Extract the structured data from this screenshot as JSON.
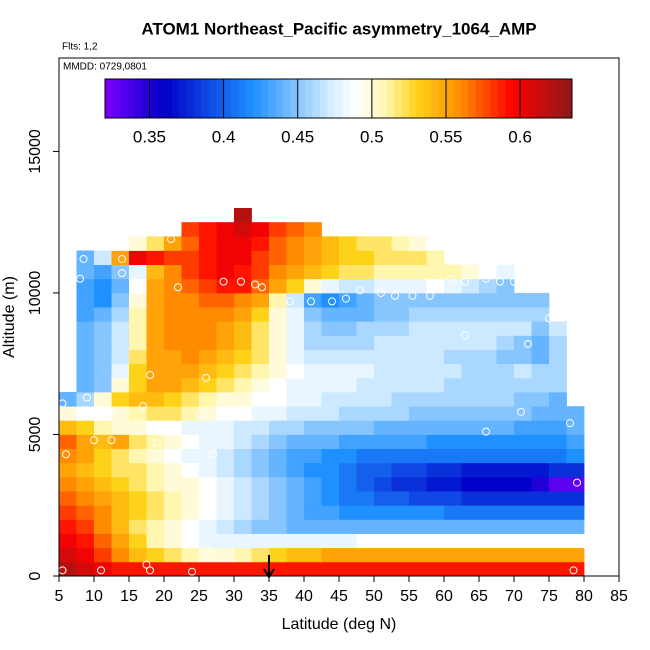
{
  "chart_data": {
    "type": "heatmap",
    "title": "ATOM1 Northeast_Pacific asymmetry_1064_AMP",
    "subtitle": "Flts: 1,2",
    "annotation": "MMDD: 0729,0801",
    "xlabel": "Latitude (deg N)",
    "ylabel": "Altitude (m)",
    "xlim": [
      5,
      85
    ],
    "xticks": [
      5,
      10,
      15,
      20,
      25,
      30,
      35,
      40,
      45,
      50,
      55,
      60,
      65,
      70,
      75,
      80,
      85
    ],
    "ylim": [
      0,
      18300
    ],
    "yticks": [
      0,
      5000,
      10000,
      15000
    ],
    "xbins": [
      5,
      7.5,
      10,
      12.5,
      15,
      17.5,
      20,
      22.5,
      25,
      27.5,
      30,
      32.5,
      35,
      37.5,
      40,
      42.5,
      45,
      47.5,
      50,
      52.5,
      55,
      57.5,
      60,
      62.5,
      65,
      67.5,
      70,
      72.5,
      75,
      77.5,
      80
    ],
    "ybins": [
      0,
      500,
      1000,
      1500,
      2000,
      2500,
      3000,
      3500,
      4000,
      4500,
      5000,
      5500,
      6000,
      6500,
      7000,
      7500,
      8000,
      8500,
      9000,
      9500,
      10000,
      10500,
      11000,
      11500,
      12000,
      12500,
      13000
    ],
    "z": [
      [
        0.62,
        0.61,
        0.6,
        0.59,
        0.59,
        0.59,
        0.59,
        0.59,
        0.59,
        0.59,
        0.59,
        0.59,
        0.59,
        0.59,
        0.59,
        0.59,
        0.59,
        0.59,
        0.59,
        0.59,
        0.59,
        0.59,
        0.59,
        0.59,
        0.59,
        0.59,
        0.59,
        0.59,
        0.59,
        0.59
      ],
      [
        0.61,
        0.6,
        0.58,
        0.56,
        0.54,
        0.53,
        0.52,
        0.51,
        0.5,
        0.5,
        0.51,
        0.52,
        0.53,
        0.54,
        0.54,
        0.55,
        0.55,
        0.55,
        0.55,
        0.55,
        0.55,
        0.55,
        0.55,
        0.55,
        0.55,
        0.55,
        0.55,
        0.55,
        0.55,
        0.55
      ],
      [
        0.6,
        0.59,
        0.57,
        0.55,
        0.53,
        0.51,
        0.5,
        0.49,
        0.48,
        0.48,
        0.48,
        0.48,
        0.48,
        0.48,
        0.48,
        0.48,
        0.48,
        0.49,
        0.49,
        0.49,
        0.49,
        0.49,
        0.49,
        0.49,
        0.49,
        0.49,
        0.49,
        0.49,
        0.49,
        0.49
      ],
      [
        0.59,
        0.58,
        0.56,
        0.54,
        0.52,
        0.51,
        0.5,
        0.49,
        0.48,
        0.47,
        0.46,
        0.45,
        0.45,
        0.44,
        0.44,
        0.44,
        0.44,
        0.44,
        0.44,
        0.44,
        0.44,
        0.44,
        0.44,
        0.44,
        0.44,
        0.44,
        0.44,
        0.44,
        0.44,
        0.44
      ],
      [
        0.58,
        0.57,
        0.56,
        0.54,
        0.53,
        0.52,
        0.51,
        0.5,
        0.49,
        0.48,
        0.47,
        0.46,
        0.45,
        0.44,
        0.43,
        0.43,
        0.42,
        0.42,
        0.42,
        0.42,
        0.42,
        0.42,
        0.41,
        0.41,
        0.41,
        0.41,
        0.41,
        0.41,
        0.41,
        0.41
      ],
      [
        0.57,
        0.56,
        0.55,
        0.54,
        0.53,
        0.52,
        0.51,
        0.5,
        0.49,
        0.48,
        0.47,
        0.46,
        0.45,
        0.44,
        0.43,
        0.42,
        0.41,
        0.41,
        0.4,
        0.4,
        0.39,
        0.39,
        0.39,
        0.38,
        0.38,
        0.38,
        0.38,
        0.38,
        0.38,
        0.38
      ],
      [
        0.56,
        0.55,
        0.54,
        0.53,
        0.52,
        0.51,
        0.5,
        0.5,
        0.49,
        0.48,
        0.47,
        0.46,
        0.45,
        0.44,
        0.43,
        0.42,
        0.41,
        0.4,
        0.39,
        0.38,
        0.38,
        0.37,
        0.37,
        0.36,
        0.36,
        0.36,
        0.36,
        0.35,
        0.33,
        0.33
      ],
      [
        0.55,
        0.54,
        0.53,
        0.52,
        0.52,
        0.51,
        0.5,
        0.49,
        0.48,
        0.47,
        0.46,
        0.45,
        0.44,
        0.43,
        0.42,
        0.42,
        0.41,
        0.4,
        0.4,
        0.39,
        0.39,
        0.38,
        0.38,
        0.37,
        0.37,
        0.37,
        0.37,
        0.37,
        0.38,
        0.38
      ],
      [
        0.56,
        0.55,
        0.53,
        0.52,
        0.51,
        0.5,
        0.49,
        0.48,
        0.48,
        0.47,
        0.46,
        0.45,
        0.44,
        0.43,
        0.43,
        0.42,
        0.42,
        0.41,
        0.41,
        0.41,
        0.41,
        0.41,
        0.41,
        0.41,
        0.41,
        0.41,
        0.41,
        0.41,
        0.41,
        0.42
      ],
      [
        0.57,
        0.55,
        0.54,
        0.55,
        0.52,
        0.51,
        0.5,
        0.49,
        0.48,
        0.48,
        0.47,
        0.46,
        0.45,
        0.44,
        0.44,
        0.44,
        0.43,
        0.43,
        0.43,
        0.43,
        0.43,
        0.42,
        0.42,
        0.42,
        0.42,
        0.42,
        0.42,
        0.42,
        0.42,
        0.43
      ],
      [
        0.54,
        0.53,
        0.51,
        0.5,
        0.5,
        0.49,
        0.49,
        0.48,
        0.48,
        0.48,
        0.47,
        0.47,
        0.46,
        0.46,
        0.45,
        0.45,
        0.45,
        0.45,
        0.44,
        0.44,
        0.44,
        0.44,
        0.44,
        0.44,
        0.44,
        0.44,
        0.43,
        0.43,
        0.43,
        0.44
      ],
      [
        0.5,
        0.49,
        0.49,
        0.5,
        0.51,
        0.52,
        0.52,
        0.51,
        0.5,
        0.49,
        0.49,
        0.48,
        0.48,
        0.47,
        0.47,
        0.47,
        0.46,
        0.46,
        0.46,
        0.46,
        0.45,
        0.45,
        0.45,
        0.45,
        0.45,
        0.45,
        0.45,
        0.44,
        0.44,
        0.44
      ],
      [
        0.44,
        0.46,
        0.5,
        0.53,
        0.54,
        0.54,
        0.53,
        0.52,
        0.51,
        0.5,
        0.5,
        0.49,
        0.49,
        0.48,
        0.48,
        0.47,
        0.47,
        0.47,
        0.47,
        0.46,
        0.46,
        0.46,
        0.46,
        0.46,
        0.46,
        0.46,
        0.45,
        0.45,
        0.44,
        null
      ],
      [
        null,
        0.44,
        0.45,
        0.5,
        0.53,
        0.55,
        0.55,
        0.54,
        0.53,
        0.52,
        0.51,
        0.5,
        0.49,
        0.48,
        0.48,
        0.48,
        0.48,
        0.47,
        0.47,
        0.47,
        0.47,
        0.47,
        0.46,
        0.46,
        0.46,
        0.46,
        0.46,
        0.46,
        0.46,
        null
      ],
      [
        null,
        0.44,
        0.45,
        0.48,
        0.53,
        0.55,
        0.55,
        0.55,
        0.54,
        0.53,
        0.52,
        0.51,
        0.5,
        0.49,
        0.48,
        0.48,
        0.48,
        0.48,
        0.47,
        0.47,
        0.47,
        0.47,
        0.47,
        0.46,
        0.46,
        0.46,
        0.47,
        0.46,
        0.46,
        null
      ],
      [
        null,
        0.44,
        0.45,
        0.47,
        0.52,
        0.55,
        0.55,
        0.56,
        0.55,
        0.54,
        0.53,
        0.52,
        0.5,
        0.48,
        0.47,
        0.47,
        0.47,
        0.47,
        0.47,
        0.47,
        0.47,
        0.47,
        0.46,
        0.46,
        0.46,
        0.45,
        0.45,
        0.44,
        0.46,
        null
      ],
      [
        null,
        0.44,
        0.45,
        0.47,
        0.51,
        0.55,
        0.56,
        0.56,
        0.56,
        0.55,
        0.54,
        0.52,
        0.5,
        0.48,
        0.46,
        0.46,
        0.46,
        0.46,
        0.47,
        0.47,
        0.47,
        0.47,
        0.47,
        0.47,
        0.47,
        0.46,
        0.45,
        0.44,
        0.46,
        null
      ],
      [
        null,
        0.44,
        0.45,
        0.47,
        0.51,
        0.55,
        0.56,
        0.56,
        0.56,
        0.55,
        0.54,
        0.52,
        0.5,
        0.48,
        0.46,
        0.45,
        0.45,
        0.46,
        0.46,
        0.46,
        0.47,
        0.47,
        0.47,
        0.47,
        0.47,
        0.47,
        0.47,
        0.45,
        0.47,
        null
      ],
      [
        null,
        0.43,
        0.44,
        0.46,
        0.51,
        0.55,
        0.56,
        0.56,
        0.56,
        0.56,
        0.55,
        0.53,
        0.5,
        0.48,
        0.45,
        0.44,
        0.44,
        0.44,
        0.45,
        0.45,
        0.46,
        0.46,
        0.46,
        0.46,
        0.46,
        0.46,
        0.46,
        0.46,
        null,
        null
      ],
      [
        null,
        0.43,
        0.42,
        0.45,
        0.5,
        0.55,
        0.56,
        0.56,
        0.57,
        0.57,
        0.56,
        0.55,
        0.51,
        0.47,
        0.43,
        0.42,
        0.43,
        0.44,
        0.45,
        0.45,
        0.45,
        0.45,
        0.45,
        0.45,
        0.45,
        0.45,
        0.45,
        0.45,
        null,
        null
      ],
      [
        null,
        0.43,
        0.42,
        0.44,
        0.49,
        0.55,
        0.56,
        0.57,
        0.58,
        0.59,
        0.59,
        0.57,
        0.55,
        0.53,
        0.5,
        0.48,
        0.47,
        0.47,
        0.48,
        0.48,
        0.48,
        0.49,
        0.48,
        0.47,
        0.46,
        0.45,
        null,
        null,
        null,
        null
      ],
      [
        null,
        0.44,
        0.43,
        0.45,
        0.48,
        0.54,
        0.56,
        0.58,
        0.59,
        0.6,
        0.59,
        0.58,
        0.56,
        0.55,
        0.54,
        0.53,
        0.52,
        0.52,
        0.51,
        0.51,
        0.51,
        0.51,
        0.51,
        0.5,
        0.49,
        0.48,
        null,
        null,
        null,
        null
      ],
      [
        null,
        0.44,
        0.47,
        0.55,
        0.6,
        0.59,
        0.58,
        0.58,
        0.59,
        0.6,
        0.6,
        0.58,
        0.57,
        0.56,
        0.55,
        0.54,
        0.53,
        0.53,
        0.52,
        0.52,
        0.52,
        0.51,
        null,
        null,
        null,
        null,
        null,
        null,
        null,
        null
      ],
      [
        null,
        null,
        null,
        0.49,
        0.5,
        0.52,
        0.55,
        0.57,
        0.59,
        0.6,
        0.6,
        0.59,
        0.57,
        0.56,
        0.55,
        0.54,
        0.53,
        0.52,
        0.52,
        0.51,
        0.5,
        null,
        null,
        null,
        null,
        null,
        null,
        null,
        null,
        null
      ],
      [
        null,
        null,
        null,
        null,
        null,
        null,
        null,
        0.58,
        0.59,
        0.6,
        0.61,
        0.6,
        0.58,
        0.57,
        0.56,
        null,
        null,
        null,
        null,
        null,
        null,
        null,
        null,
        null,
        null,
        null,
        null,
        null,
        null,
        null
      ],
      [
        null,
        null,
        null,
        null,
        null,
        null,
        null,
        null,
        null,
        null,
        0.62,
        null,
        null,
        null,
        null,
        null,
        null,
        null,
        null,
        null,
        null,
        null,
        null,
        null,
        null,
        null,
        null,
        null,
        null,
        null
      ]
    ],
    "colorbar_lim": [
      0.32,
      0.635
    ],
    "colorbar_ticks": [
      0.35,
      0.4,
      0.45,
      0.5,
      0.55,
      0.6
    ],
    "colorscale": [
      [
        0.32,
        "#7a00ff"
      ],
      [
        0.36,
        "#0000c8"
      ],
      [
        0.42,
        "#1e90ff"
      ],
      [
        0.475,
        "#dff2ff"
      ],
      [
        0.49,
        "#ffffff"
      ],
      [
        0.51,
        "#fff6b0"
      ],
      [
        0.53,
        "#ffd21a"
      ],
      [
        0.56,
        "#ff8c00"
      ],
      [
        0.595,
        "#ff0000"
      ],
      [
        0.635,
        "#8b1a1a"
      ]
    ],
    "points": {
      "x": [
        5.5,
        11,
        17.5,
        18,
        24,
        78.5,
        26,
        5.5,
        6,
        9,
        10,
        12.5,
        12.5,
        17,
        19,
        25,
        27,
        34,
        18,
        26,
        8,
        8.5,
        14,
        14,
        22,
        21,
        29,
        28.5,
        31,
        33,
        34,
        38,
        41,
        44,
        46,
        48,
        51,
        53,
        55.5,
        58,
        61,
        63,
        66,
        67,
        68,
        70,
        75,
        72,
        63,
        66,
        71,
        78,
        79
      ],
      "y": [
        200,
        200,
        400,
        200,
        150,
        200,
        900,
        6100,
        4300,
        6300,
        4800,
        4800,
        5800,
        6000,
        4700,
        5700,
        4300,
        6600,
        7100,
        7000,
        10500,
        11200,
        10700,
        11200,
        10200,
        11900,
        12700,
        10400,
        10400,
        10300,
        10200,
        9700,
        9700,
        9700,
        9800,
        10100,
        10000,
        9900,
        9900,
        9900,
        10500,
        10400,
        10500,
        11300,
        10400,
        10400,
        9100,
        8200,
        8500,
        5100,
        5800,
        5400,
        3300
      ],
      "color": "#ffffff"
    },
    "marker_x": 35,
    "box": true
  }
}
